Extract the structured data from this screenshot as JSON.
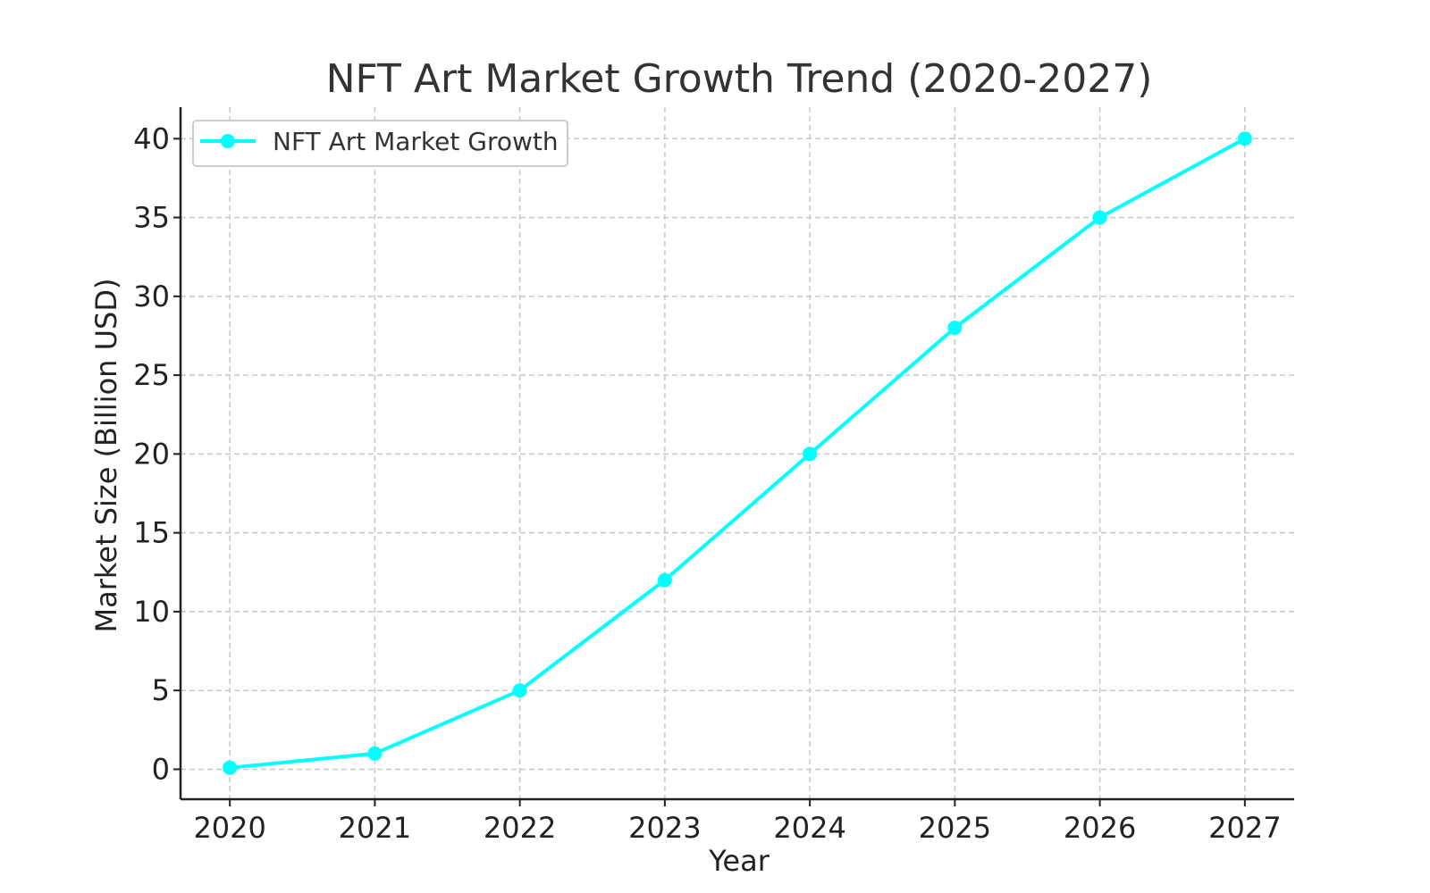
{
  "chart_data": {
    "type": "line",
    "title": "NFT Art Market Growth Trend (2020-2027)",
    "xlabel": "Year",
    "ylabel": "Market Size (Billion USD)",
    "categories": [
      "2020",
      "2021",
      "2022",
      "2023",
      "2024",
      "2025",
      "2026",
      "2027"
    ],
    "x": [
      2020,
      2021,
      2022,
      2023,
      2024,
      2025,
      2026,
      2027
    ],
    "series": [
      {
        "name": "NFT Art Market Growth",
        "values": [
          0.1,
          1,
          5,
          12,
          20,
          28,
          35,
          40
        ],
        "color": "#00FFFF",
        "marker": "circle"
      }
    ],
    "xlim": [
      2019.66,
      2027.34
    ],
    "ylim": [
      -1.9,
      42
    ],
    "yticks": [
      0,
      5,
      10,
      15,
      20,
      25,
      30,
      35,
      40
    ],
    "ytick_labels": [
      "0",
      "5",
      "10",
      "15",
      "20",
      "25",
      "30",
      "35",
      "40"
    ],
    "grid": true,
    "legend_position": "top-left"
  }
}
